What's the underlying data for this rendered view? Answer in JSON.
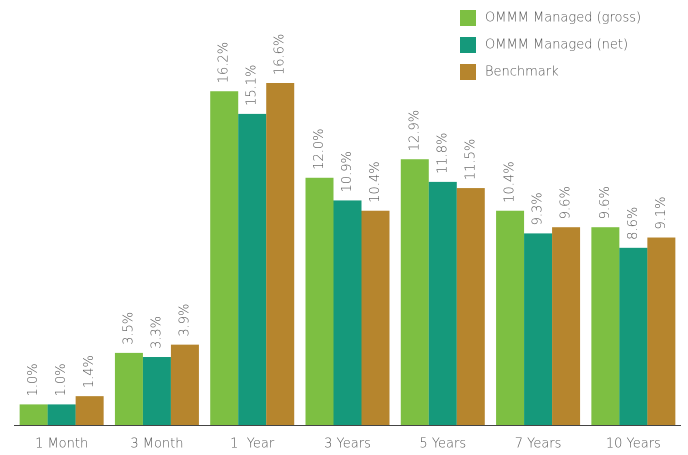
{
  "chart_data": {
    "type": "bar",
    "categories": [
      "1 Month",
      "3 Month",
      "1  Year",
      "3 Years",
      "5 Years",
      "7 Years",
      "10 Years"
    ],
    "series": [
      {
        "name": "OMMM Managed (gross)",
        "color": "#7dbf42",
        "values": [
          1.0,
          3.5,
          16.2,
          12.0,
          12.9,
          10.4,
          9.6
        ],
        "value_labels": [
          "1.0%",
          "3.5%",
          "16.2%",
          "12.0%",
          "12.9%",
          "10.4%",
          "9.6%"
        ]
      },
      {
        "name": "OMMM Managed (net)",
        "color": "#15997b",
        "values": [
          1.0,
          3.3,
          15.1,
          10.9,
          11.8,
          9.3,
          8.6
        ],
        "value_labels": [
          "1.0%",
          "3.3%",
          "15.1%",
          "10.9%",
          "11.8%",
          "9.3%",
          "8.6%"
        ]
      },
      {
        "name": "Benchmark",
        "color": "#b6852d",
        "values": [
          1.4,
          3.9,
          16.6,
          10.4,
          11.5,
          9.6,
          9.1
        ],
        "value_labels": [
          "1.4%",
          "3.9%",
          "16.6%",
          "10.4%",
          "11.5%",
          "9.6%",
          "9.1%"
        ]
      }
    ],
    "legend": "top-right"
  }
}
